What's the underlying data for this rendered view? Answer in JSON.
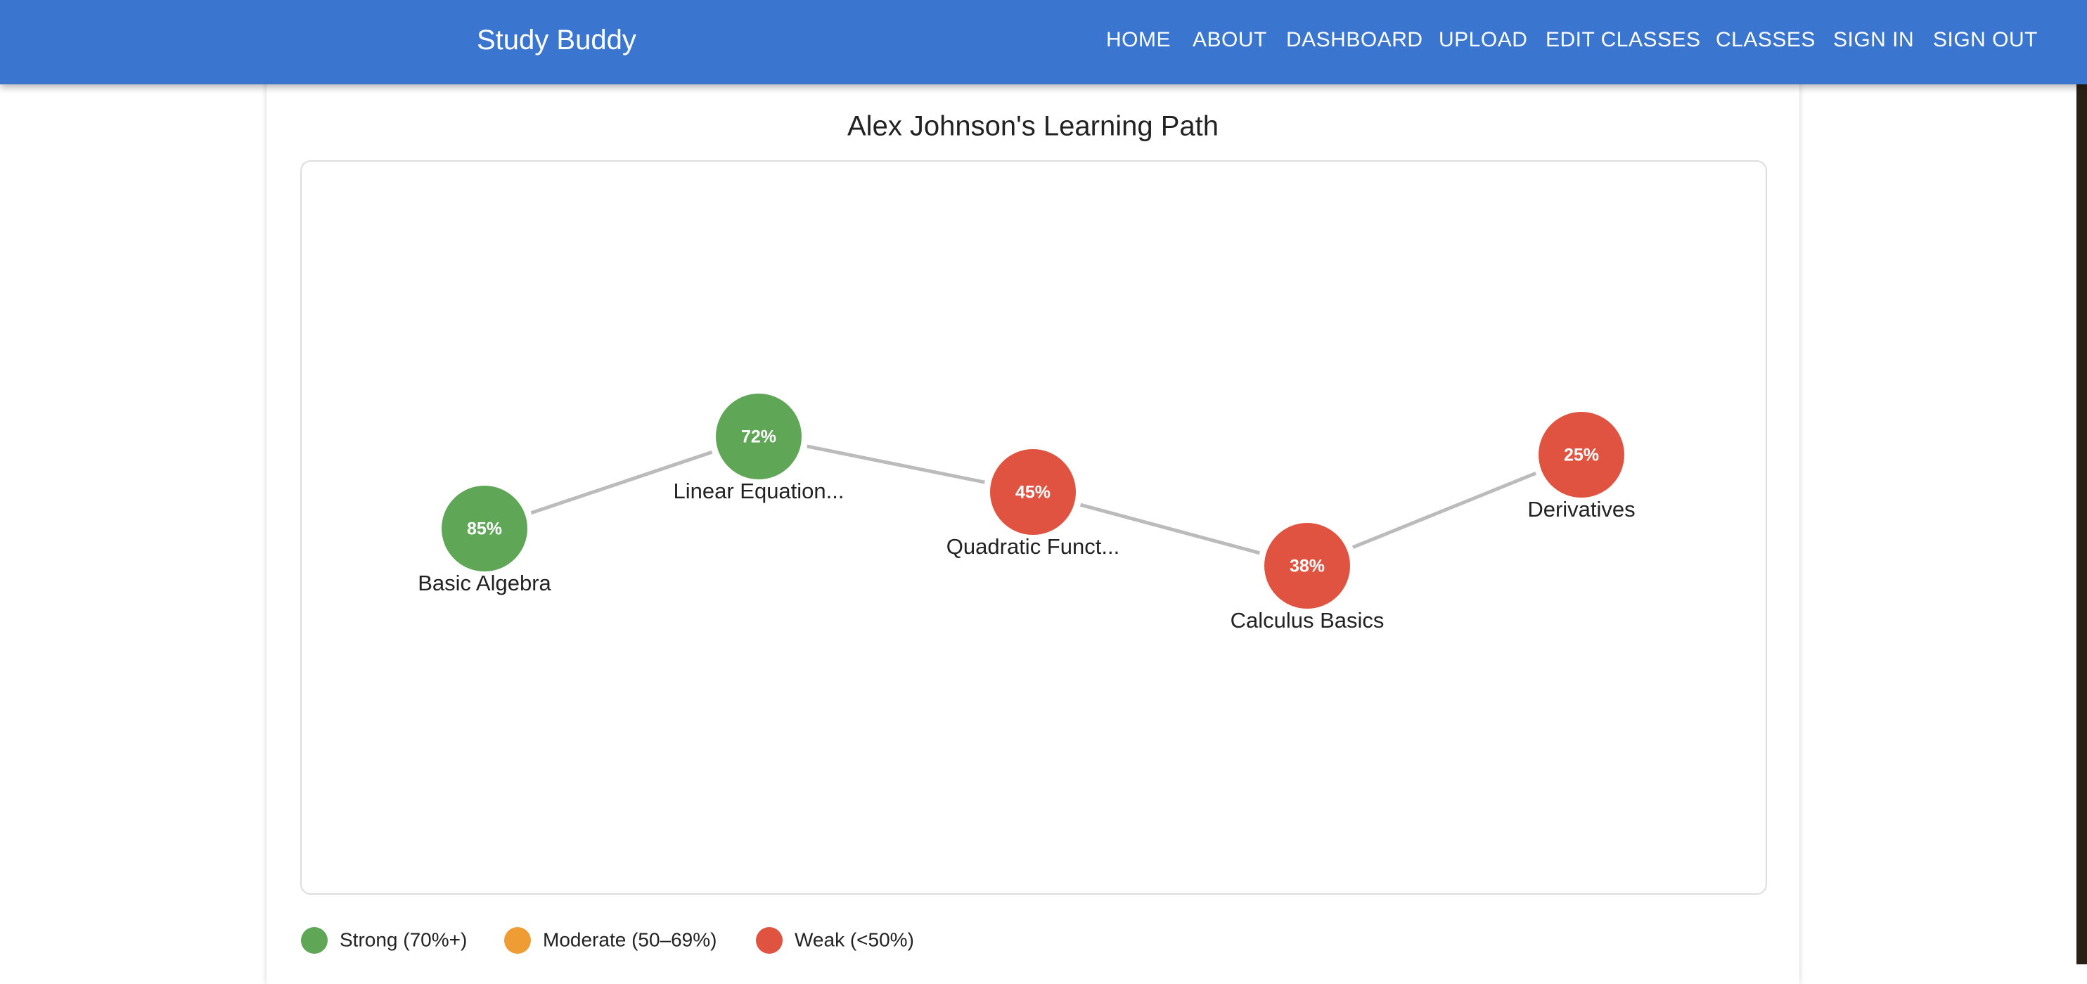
{
  "header": {
    "brand": "Study Buddy",
    "nav": [
      "HOME",
      "ABOUT",
      "DASHBOARD",
      "UPLOAD",
      "EDIT CLASSES",
      "CLASSES",
      "SIGN IN",
      "SIGN OUT"
    ]
  },
  "diagram": {
    "title": "Alex Johnson's Learning Path",
    "nodes": [
      {
        "label": "Basic Algebra",
        "score": "85%",
        "color": "#5fa657"
      },
      {
        "label": "Linear Equation...",
        "score": "72%",
        "color": "#5fa657"
      },
      {
        "label": "Quadratic Funct...",
        "score": "45%",
        "color": "#e05340"
      },
      {
        "label": "Calculus Basics",
        "score": "38%",
        "color": "#e05340"
      },
      {
        "label": "Derivatives",
        "score": "25%",
        "color": "#e05340"
      }
    ]
  },
  "legend": [
    {
      "label": "Strong (70%+)",
      "color": "#5fa657"
    },
    {
      "label": "Moderate (50–69%)",
      "color": "#f09c35"
    },
    {
      "label": "Weak (<50%)",
      "color": "#e05340"
    }
  ]
}
